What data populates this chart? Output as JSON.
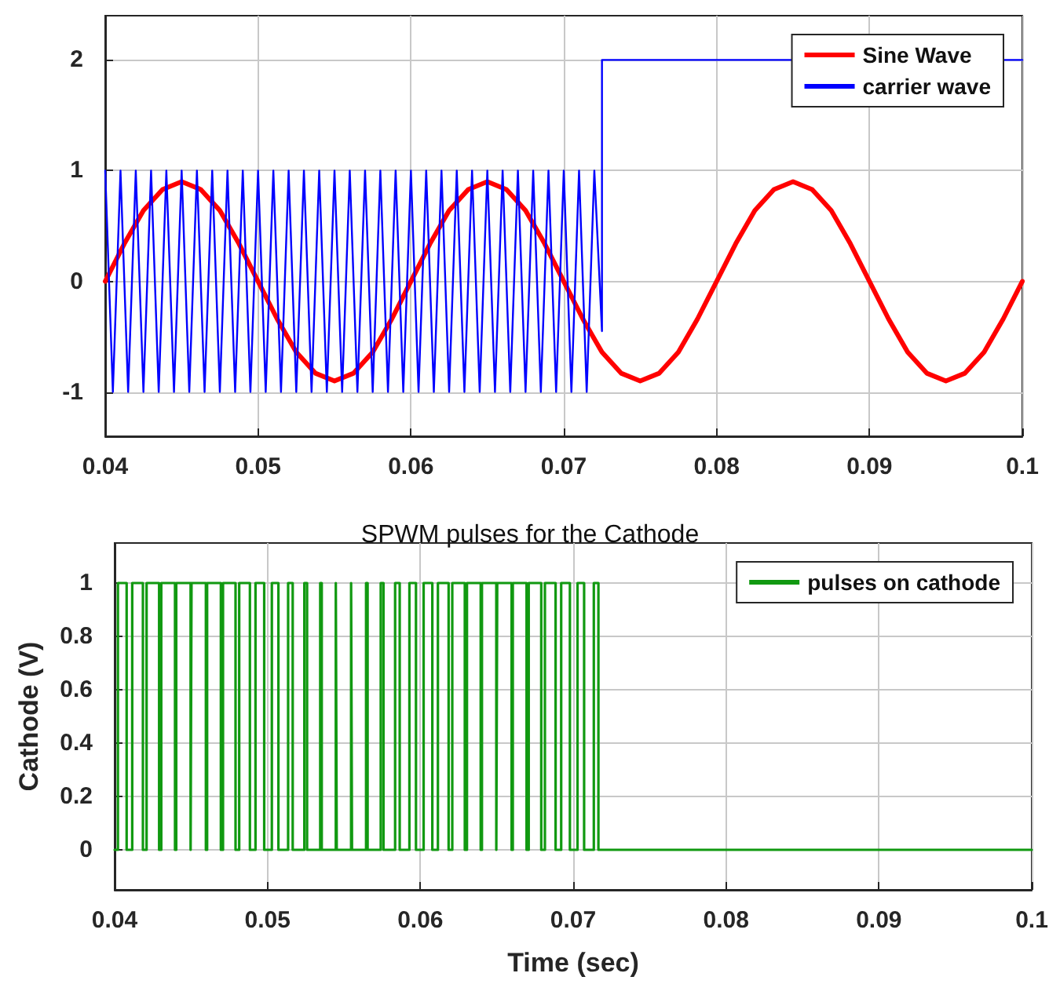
{
  "chart_data": [
    {
      "type": "line",
      "xlim": [
        0.04,
        0.1
      ],
      "xticks": [
        0.04,
        0.05,
        0.06,
        0.07,
        0.08,
        0.09,
        0.1
      ],
      "ylim": [
        -1.4,
        2.4
      ],
      "yticks": [
        -1,
        0,
        1,
        2
      ],
      "grid": true,
      "legend": "top right",
      "marker": "none",
      "line_style": "solid",
      "series": [
        {
          "name": "Sine Wave",
          "color": "#ff0000",
          "x": [
            0.04,
            0.04125,
            0.0425,
            0.04375,
            0.045,
            0.04625,
            0.0475,
            0.04875,
            0.05,
            0.05125,
            0.0525,
            0.05375,
            0.055,
            0.05625,
            0.0575,
            0.05875,
            0.06,
            0.06125,
            0.0625,
            0.06375,
            0.065,
            0.06625,
            0.0675,
            0.06875,
            0.07,
            0.07125,
            0.0725,
            0.07375,
            0.075,
            0.07625,
            0.0775,
            0.07875,
            0.08,
            0.08125,
            0.0825,
            0.08375,
            0.085,
            0.08625,
            0.0875,
            0.08875,
            0.09,
            0.09125,
            0.0925,
            0.09375,
            0.095,
            0.09625,
            0.0975,
            0.09875,
            0.1
          ],
          "values": [
            0,
            0.34,
            0.64,
            0.83,
            0.9,
            0.83,
            0.64,
            0.34,
            0,
            -0.34,
            -0.64,
            -0.83,
            -0.9,
            -0.83,
            -0.64,
            -0.34,
            0,
            0.34,
            0.64,
            0.83,
            0.9,
            0.83,
            0.64,
            0.34,
            0,
            -0.34,
            -0.64,
            -0.83,
            -0.9,
            -0.83,
            -0.64,
            -0.34,
            0,
            0.34,
            0.64,
            0.83,
            0.9,
            0.83,
            0.64,
            0.34,
            0,
            -0.34,
            -0.64,
            -0.83,
            -0.9,
            -0.83,
            -0.64,
            -0.34,
            0
          ]
        },
        {
          "name": "carrier wave",
          "color": "#0000ff",
          "x": [
            0.04,
            0.0405,
            0.041,
            0.0415,
            0.042,
            0.0425,
            0.043,
            0.0435,
            0.044,
            0.0445,
            0.045,
            0.0455,
            0.046,
            0.0465,
            0.047,
            0.0475,
            0.048,
            0.0485,
            0.049,
            0.0495,
            0.05,
            0.0505,
            0.051,
            0.0515,
            0.052,
            0.0525,
            0.053,
            0.0535,
            0.054,
            0.0545,
            0.055,
            0.0555,
            0.056,
            0.0565,
            0.057,
            0.0575,
            0.058,
            0.0585,
            0.059,
            0.0595,
            0.06,
            0.0605,
            0.061,
            0.0615,
            0.062,
            0.0625,
            0.063,
            0.0635,
            0.064,
            0.0645,
            0.065,
            0.0655,
            0.066,
            0.0665,
            0.067,
            0.0675,
            0.068,
            0.0685,
            0.069,
            0.0695,
            0.07,
            0.0705,
            0.071,
            0.0715,
            0.072,
            0.0725,
            0.0725,
            0.1
          ],
          "values": [
            1,
            -1,
            1,
            -1,
            1,
            -1,
            1,
            -1,
            1,
            -1,
            1,
            -1,
            1,
            -1,
            1,
            -1,
            1,
            -1,
            1,
            -1,
            1,
            -1,
            1,
            -1,
            1,
            -1,
            1,
            -1,
            1,
            -1,
            1,
            -1,
            1,
            -1,
            1,
            -1,
            1,
            -1,
            1,
            -1,
            1,
            -1,
            1,
            -1,
            1,
            -1,
            1,
            -1,
            1,
            -1,
            1,
            -1,
            1,
            -1,
            1,
            -1,
            1,
            -1,
            1,
            -1,
            1,
            -1,
            1,
            -1,
            1,
            -0.45,
            2,
            2
          ]
        }
      ]
    },
    {
      "type": "step",
      "title": "SPWM pulses for the Cathode",
      "xlabel": "Time (sec)",
      "ylabel": "Cathode (V)",
      "xlim": [
        0.04,
        0.1
      ],
      "xticks": [
        0.04,
        0.05,
        0.06,
        0.07,
        0.08,
        0.09,
        0.1
      ],
      "ylim": [
        -0.15,
        1.15
      ],
      "yticks": [
        0,
        0.2,
        0.4,
        0.6,
        0.8,
        1
      ],
      "grid": true,
      "legend": "top right",
      "marker": "none",
      "line_style": "solid",
      "series": [
        {
          "name": "pulses on cathode",
          "color": "#119911",
          "x": [
            0.04,
            0.040215,
            0.040785,
            0.04115,
            0.04185,
            0.04209,
            0.04291,
            0.04305,
            0.04395,
            0.04403,
            0.04497,
            0.04503,
            0.04597,
            0.04605,
            0.04695,
            0.04709,
            0.04791,
            0.04815,
            0.04885,
            0.049215,
            0.049785,
            0.050285,
            0.050715,
            0.05135,
            0.05165,
            0.05241,
            0.05259,
            0.05345,
            0.05355,
            0.05447,
            0.05453,
            0.05547,
            0.05553,
            0.05645,
            0.05655,
            0.05741,
            0.05759,
            0.05835,
            0.05865,
            0.059285,
            0.059715,
            0.060215,
            0.060785,
            0.06115,
            0.06185,
            0.06209,
            0.06291,
            0.06305,
            0.06395,
            0.06403,
            0.06497,
            0.06503,
            0.06597,
            0.06605,
            0.06695,
            0.06709,
            0.06791,
            0.06815,
            0.06885,
            0.069215,
            0.069785,
            0.070285,
            0.070715,
            0.07135,
            0.07165,
            0.1
          ],
          "values": [
            0,
            1,
            0,
            1,
            0,
            1,
            0,
            1,
            0,
            1,
            0,
            1,
            0,
            1,
            0,
            1,
            0,
            1,
            0,
            1,
            0,
            1,
            0,
            1,
            0,
            1,
            0,
            1,
            0,
            1,
            0,
            1,
            0,
            1,
            0,
            1,
            0,
            1,
            0,
            1,
            0,
            1,
            0,
            1,
            0,
            1,
            0,
            1,
            0,
            1,
            0,
            1,
            0,
            1,
            0,
            1,
            0,
            1,
            0,
            1,
            0,
            1,
            0,
            1,
            0,
            0
          ]
        }
      ]
    }
  ]
}
